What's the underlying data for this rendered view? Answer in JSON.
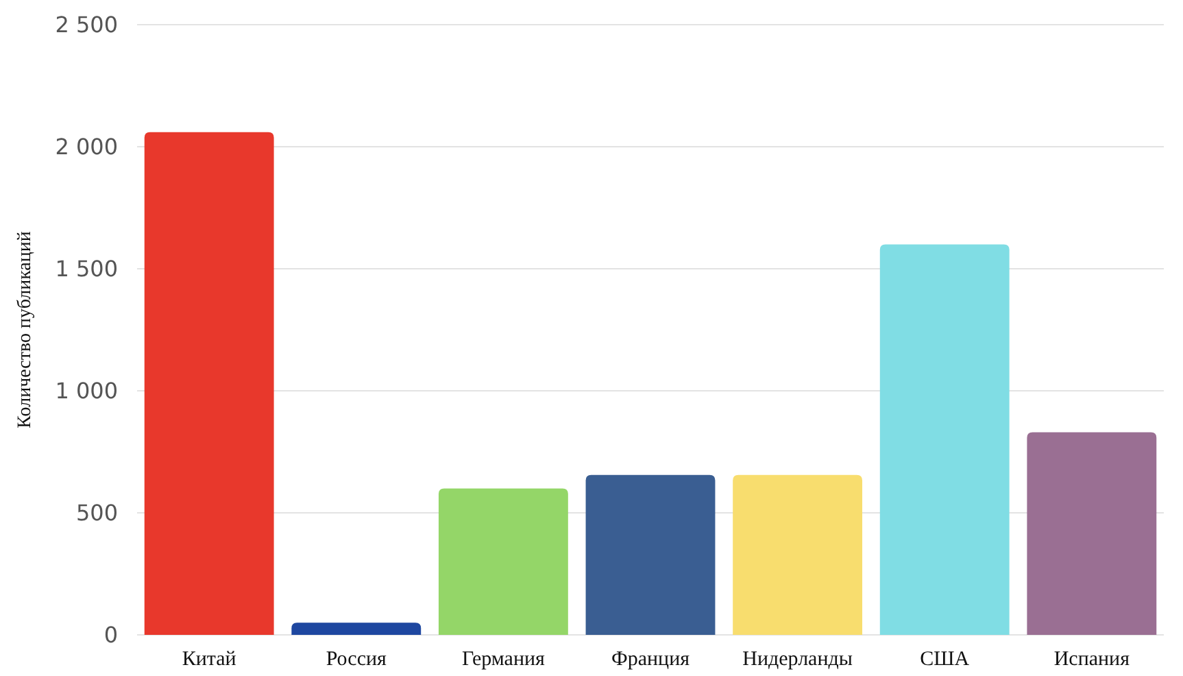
{
  "chart_data": {
    "type": "bar",
    "ylabel": "Количество публикаций",
    "categories": [
      "Китай",
      "Россия",
      "Германия",
      "Франция",
      "Нидерланды",
      "США",
      "Испания"
    ],
    "values": [
      2060,
      50,
      600,
      655,
      655,
      1600,
      830
    ],
    "colors": [
      "#e8382c",
      "#1e47a0",
      "#94d668",
      "#3a5e92",
      "#f8dd6e",
      "#80dde4",
      "#9a6f93"
    ],
    "ylim": [
      0,
      2500
    ],
    "yticks": [
      0,
      500,
      {
        "value": 1000,
        "label": "1 000"
      },
      {
        "value": 1500,
        "label": "1 500"
      },
      {
        "value": 2000,
        "label": "2 000"
      },
      {
        "value": 2500,
        "label": "2 500"
      }
    ],
    "grid": true
  }
}
